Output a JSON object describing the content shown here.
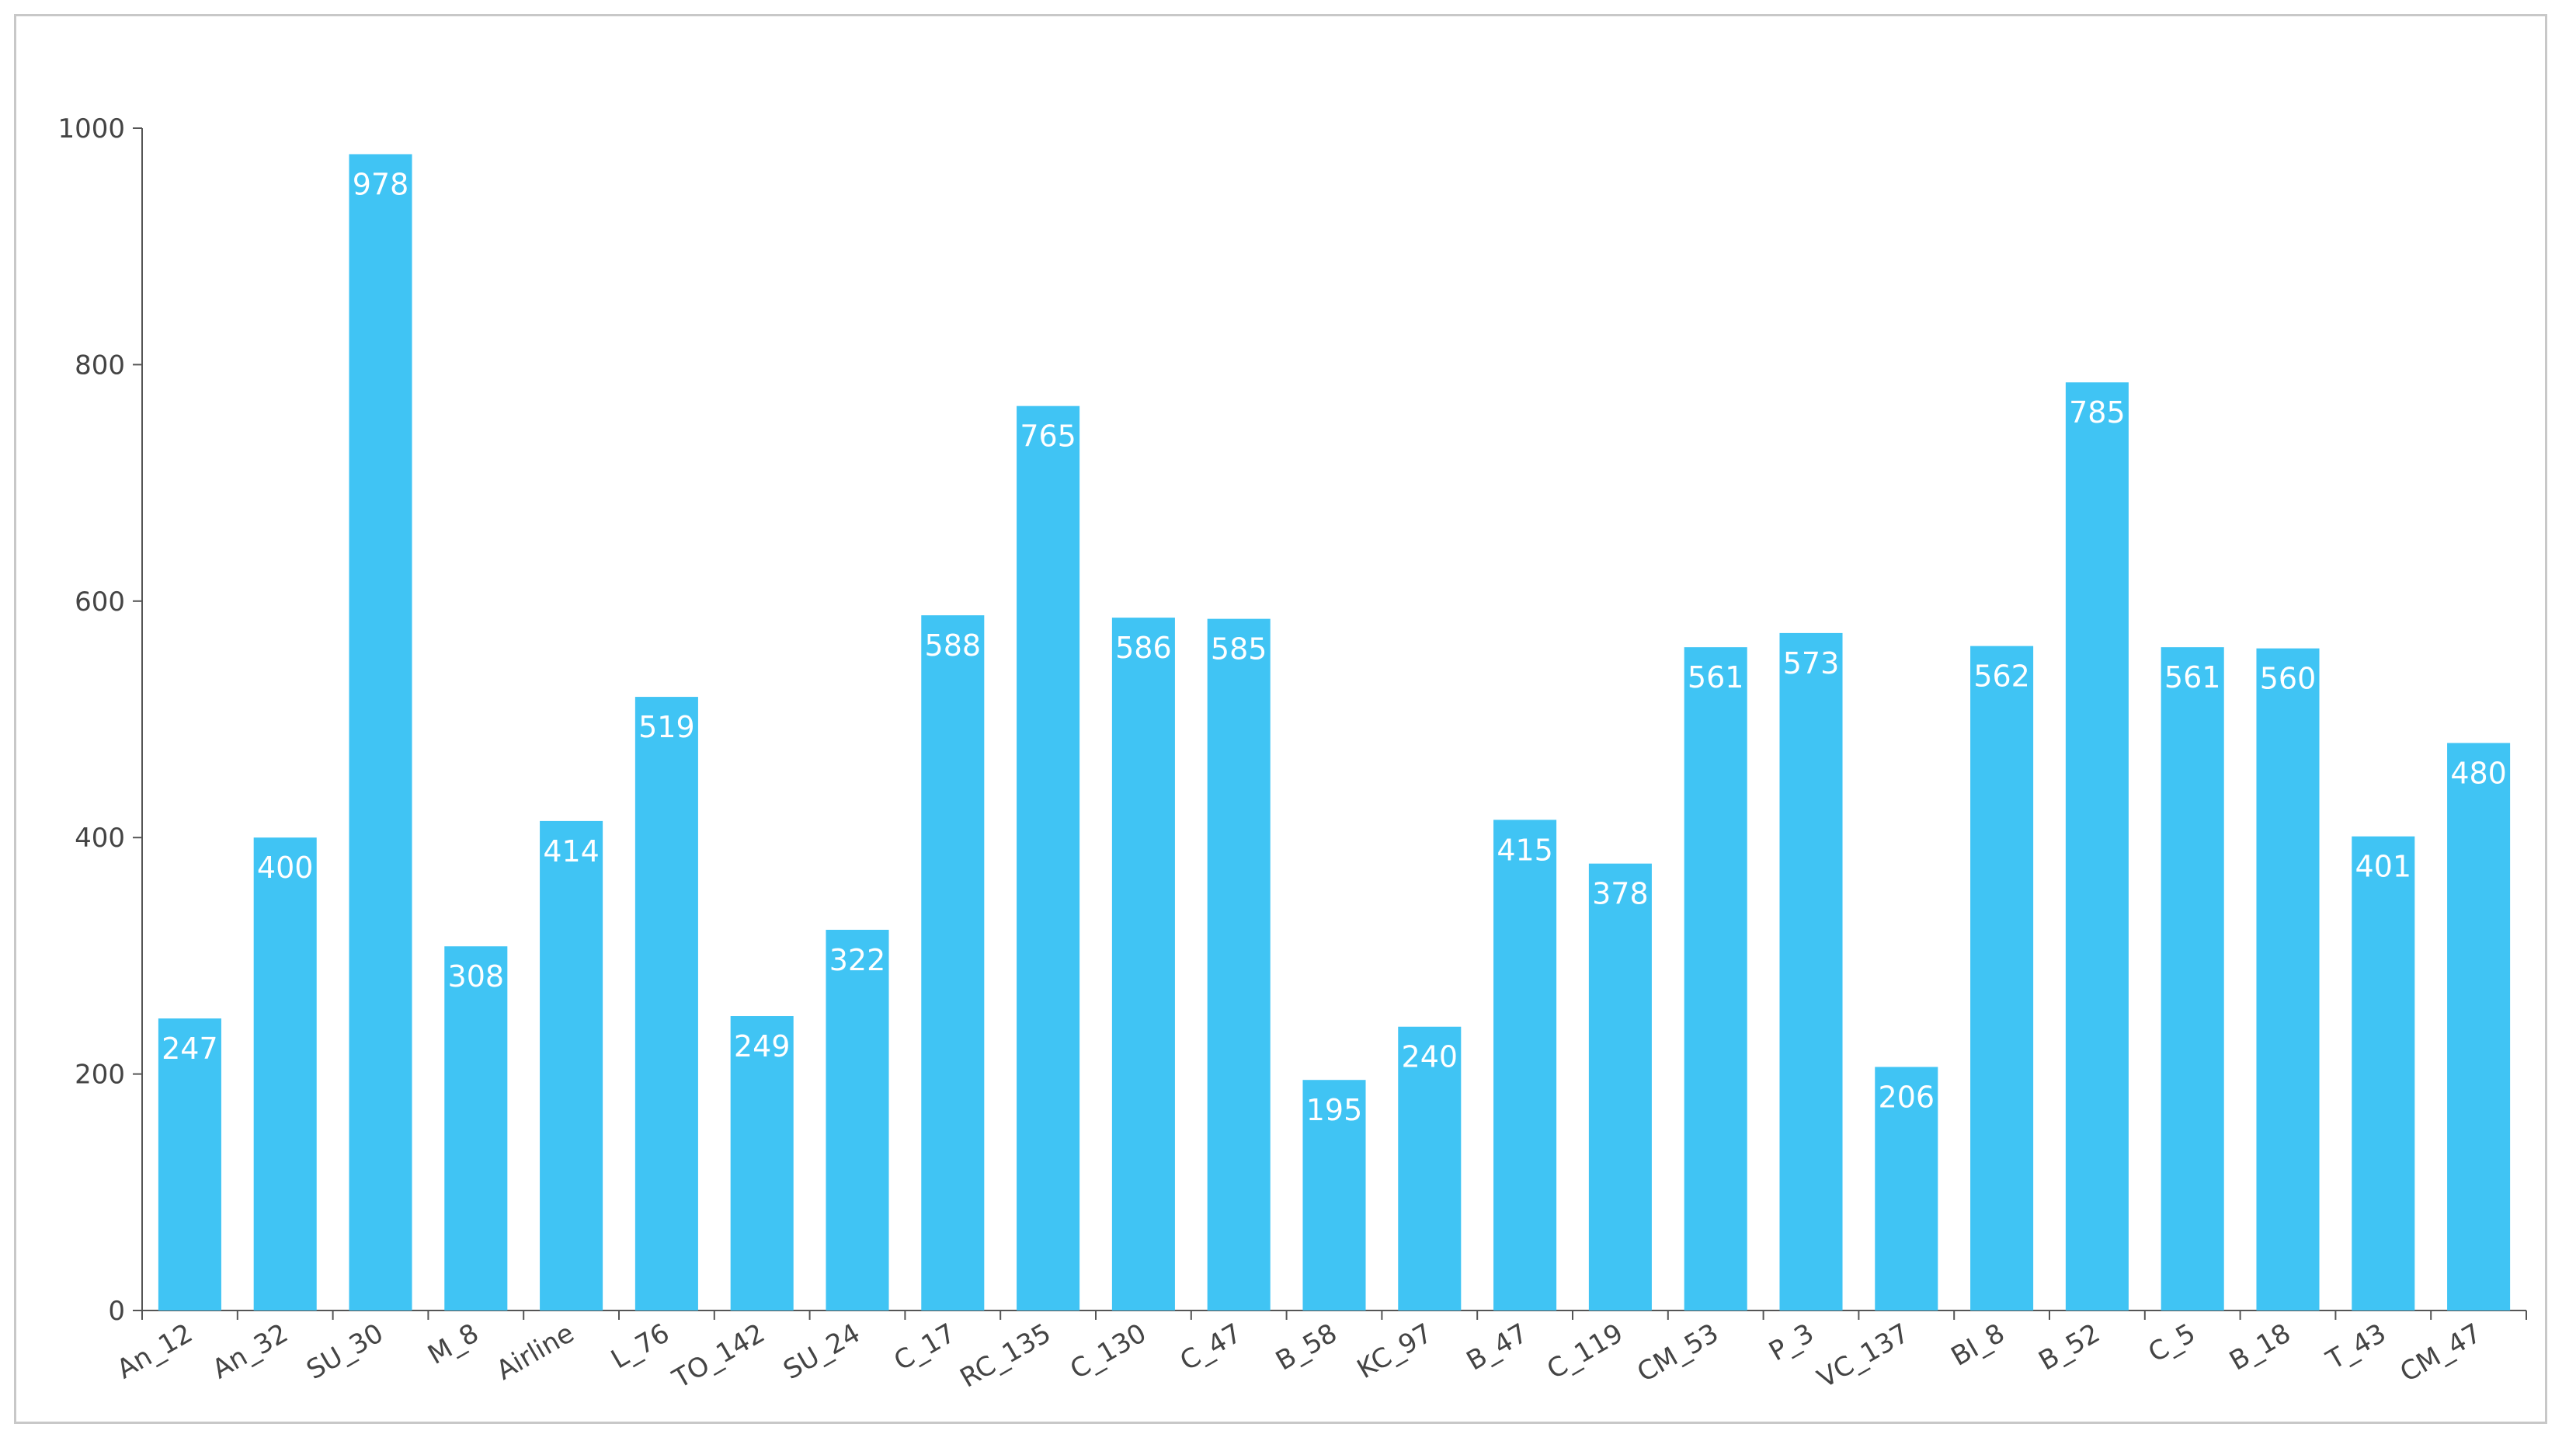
{
  "chart_data": {
    "type": "bar",
    "categories": [
      "An_12",
      "An_32",
      "SU_30",
      "M_8",
      "Airline",
      "L_76",
      "TO_142",
      "SU_24",
      "C_17",
      "RC_135",
      "C_130",
      "C_47",
      "B_58",
      "KC_97",
      "B_47",
      "C_119",
      "CM_53",
      "P_3",
      "VC_137",
      "BI_8",
      "B_52",
      "C_5",
      "B_18",
      "T_43",
      "CM_47"
    ],
    "values": [
      247,
      400,
      978,
      308,
      414,
      519,
      249,
      322,
      588,
      765,
      586,
      585,
      195,
      240,
      415,
      378,
      561,
      573,
      206,
      562,
      785,
      561,
      560,
      401,
      480
    ],
    "title": "",
    "xlabel": "",
    "ylabel": "",
    "ylim": [
      0,
      1000
    ],
    "yticks": [
      0,
      200,
      400,
      600,
      800,
      1000
    ],
    "bar_color": "#40c4f4",
    "data_labels": true,
    "grid": false,
    "legend": "none"
  }
}
